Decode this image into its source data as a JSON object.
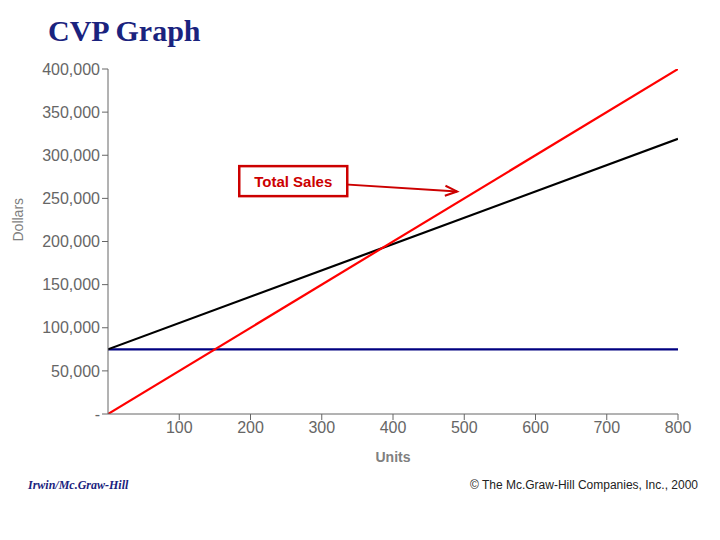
{
  "chart_data": {
    "type": "line",
    "title": "CVP Graph",
    "x_label": "Units",
    "y_label": "Dollars",
    "x": [
      0,
      800
    ],
    "series": [
      {
        "color": "#000080",
        "values": [
          75000,
          75000
        ]
      },
      {
        "color": "#000000",
        "values": [
          75000,
          319000
        ]
      },
      {
        "color": "#ff0000",
        "values": [
          0,
          400000
        ]
      }
    ],
    "xlim": [
      0,
      800
    ],
    "ylim": [
      0,
      400000
    ],
    "xticks": [
      100,
      200,
      300,
      400,
      500,
      600,
      700,
      800
    ],
    "yticks": [
      {
        "value": 0,
        "label": "-"
      },
      {
        "value": 50000,
        "label": "50,000"
      },
      {
        "value": 100000,
        "label": "100,000"
      },
      {
        "value": 150000,
        "label": "150,000"
      },
      {
        "value": 200000,
        "label": "200,000"
      },
      {
        "value": 250000,
        "label": "250,000"
      },
      {
        "value": 300000,
        "label": "300,000"
      },
      {
        "value": 350000,
        "label": "350,000"
      },
      {
        "value": 400000,
        "label": "400,000"
      }
    ],
    "grid": false,
    "annotations": [
      {
        "text": "Total Sales",
        "x": 260,
        "y": 270000,
        "arrow_x": 490,
        "arrow_y": 258000,
        "color": "#cc0000"
      }
    ],
    "footer": [
      "Irwin/Mc.Graw-Hill",
      "© The Mc.Graw-Hill Companies, Inc., 2000"
    ]
  }
}
